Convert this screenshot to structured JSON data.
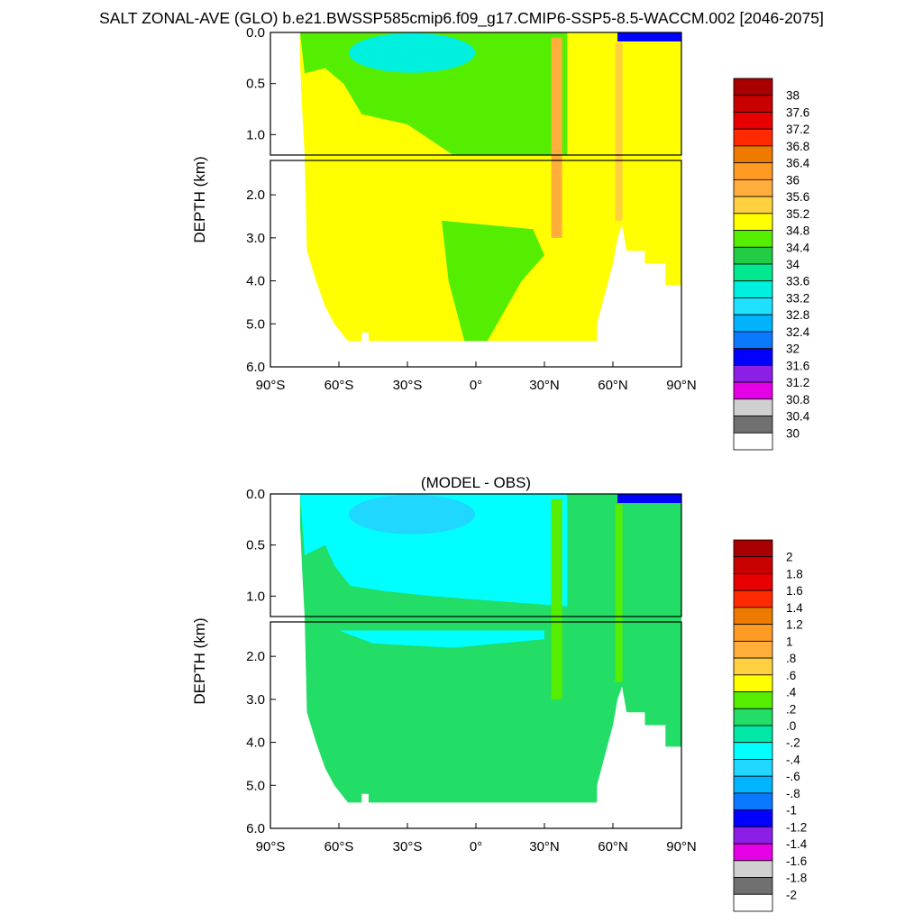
{
  "title": "SALT ZONAL-AVE (GLO) b.e21.BWSSP585cmip6.f09_g17.CMIP6-SSP5-8.5-WACCM.002 [2046-2075]",
  "chart_data": [
    {
      "type": "heatmap",
      "title": "",
      "ylabel": "DEPTH (km)",
      "xlabel": "",
      "x_ticks": [
        "90°S",
        "60°S",
        "30°S",
        "0°",
        "30°N",
        "60°N",
        "90°N"
      ],
      "x_tick_values": [
        -90,
        -60,
        -30,
        0,
        30,
        60,
        90
      ],
      "y_ticks_upper": [
        "0.0",
        "0.5",
        "1.0"
      ],
      "y_tick_values_upper": [
        0.0,
        0.5,
        1.0
      ],
      "y_ticks_lower": [
        "2.0",
        "3.0",
        "4.0",
        "5.0",
        "6.0"
      ],
      "y_tick_values_lower": [
        2.0,
        3.0,
        4.0,
        5.0,
        6.0
      ],
      "ylim_upper": [
        0,
        1.2
      ],
      "ylim_lower": [
        1.2,
        6.0
      ],
      "xlim": [
        -90,
        90
      ],
      "colorbar_labels": [
        "38",
        "37.6",
        "37.2",
        "36.8",
        "36.4",
        "36",
        "35.6",
        "35.2",
        "34.8",
        "34.4",
        "34",
        "33.6",
        "33.2",
        "32.8",
        "32.4",
        "32",
        "31.6",
        "31.2",
        "30.8",
        "30.4",
        "30"
      ],
      "colorbar_colors": [
        "#a80000",
        "#c80000",
        "#e80000",
        "#ff2a00",
        "#ee7a00",
        "#ff9a22",
        "#ffae3c",
        "#ffd040",
        "#ffff00",
        "#55ee00",
        "#22cc44",
        "#00e890",
        "#00f0e0",
        "#20e0ff",
        "#00b4ff",
        "#0a78ff",
        "#0000ff",
        "#8c1ee6",
        "#e600e6",
        "#d0d0d0",
        "#707070",
        "#ffffff"
      ]
    },
    {
      "type": "heatmap",
      "title": "(MODEL - OBS)",
      "ylabel": "DEPTH (km)",
      "xlabel": "",
      "x_ticks": [
        "90°S",
        "60°S",
        "30°S",
        "0°",
        "30°N",
        "60°N",
        "90°N"
      ],
      "x_tick_values": [
        -90,
        -60,
        -30,
        0,
        30,
        60,
        90
      ],
      "y_ticks_upper": [
        "0.0",
        "0.5",
        "1.0"
      ],
      "y_tick_values_upper": [
        0.0,
        0.5,
        1.0
      ],
      "y_ticks_lower": [
        "2.0",
        "3.0",
        "4.0",
        "5.0",
        "6.0"
      ],
      "y_tick_values_lower": [
        2.0,
        3.0,
        4.0,
        5.0,
        6.0
      ],
      "ylim_upper": [
        0,
        1.2
      ],
      "ylim_lower": [
        1.2,
        6.0
      ],
      "xlim": [
        -90,
        90
      ],
      "colorbar_labels": [
        "2",
        "1.8",
        "1.6",
        "1.4",
        "1.2",
        "1",
        ".8",
        ".6",
        ".4",
        ".2",
        ".0",
        "-.2",
        "-.4",
        "-.6",
        "-.8",
        "-1",
        "-1.2",
        "-1.4",
        "-1.6",
        "-1.8",
        "-2"
      ],
      "colorbar_colors": [
        "#a80000",
        "#c80000",
        "#e80000",
        "#ff2a00",
        "#ee7a00",
        "#ff9a22",
        "#ffae3c",
        "#ffd040",
        "#ffff00",
        "#55ee00",
        "#22dd66",
        "#00e8a8",
        "#00ffff",
        "#20d8ff",
        "#00b4ff",
        "#0a78ff",
        "#0000ff",
        "#8c1ee6",
        "#e600e6",
        "#d0d0d0",
        "#707070",
        "#ffffff"
      ]
    }
  ]
}
